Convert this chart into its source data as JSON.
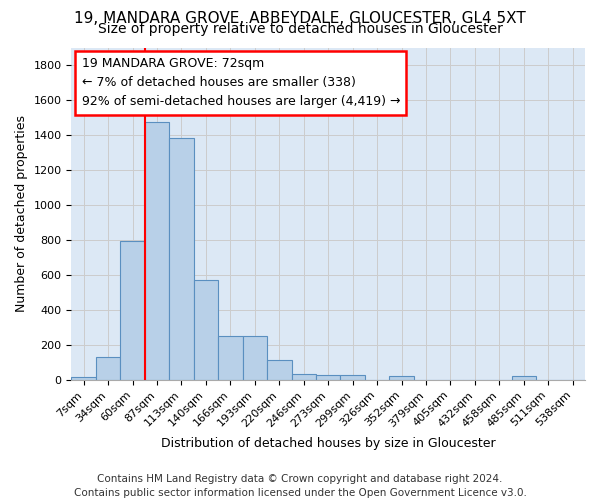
{
  "title1": "19, MANDARA GROVE, ABBEYDALE, GLOUCESTER, GL4 5XT",
  "title2": "Size of property relative to detached houses in Gloucester",
  "xlabel": "Distribution of detached houses by size in Gloucester",
  "ylabel": "Number of detached properties",
  "footer": "Contains HM Land Registry data © Crown copyright and database right 2024.\nContains public sector information licensed under the Open Government Licence v3.0.",
  "bar_labels": [
    "7sqm",
    "34sqm",
    "60sqm",
    "87sqm",
    "113sqm",
    "140sqm",
    "166sqm",
    "193sqm",
    "220sqm",
    "246sqm",
    "273sqm",
    "299sqm",
    "326sqm",
    "352sqm",
    "379sqm",
    "405sqm",
    "432sqm",
    "458sqm",
    "485sqm",
    "511sqm",
    "538sqm"
  ],
  "bar_values": [
    15,
    130,
    795,
    1475,
    1385,
    570,
    250,
    250,
    115,
    35,
    30,
    30,
    0,
    20,
    0,
    0,
    0,
    0,
    20,
    0,
    0
  ],
  "bar_color": "#b8d0e8",
  "bar_edge_color": "#5a8fc0",
  "red_line_x": 2.5,
  "annotation_text_line1": "19 MANDARA GROVE: 72sqm",
  "annotation_text_line2": "← 7% of detached houses are smaller (338)",
  "annotation_text_line3": "92% of semi-detached houses are larger (4,419) →",
  "ylim": [
    0,
    1900
  ],
  "yticks": [
    0,
    200,
    400,
    600,
    800,
    1000,
    1200,
    1400,
    1600,
    1800
  ],
  "grid_color": "#cccccc",
  "background_color": "#dce8f5",
  "title1_fontsize": 11,
  "title2_fontsize": 10,
  "axis_label_fontsize": 9,
  "tick_fontsize": 8,
  "annotation_fontsize": 9,
  "footer_fontsize": 7.5
}
